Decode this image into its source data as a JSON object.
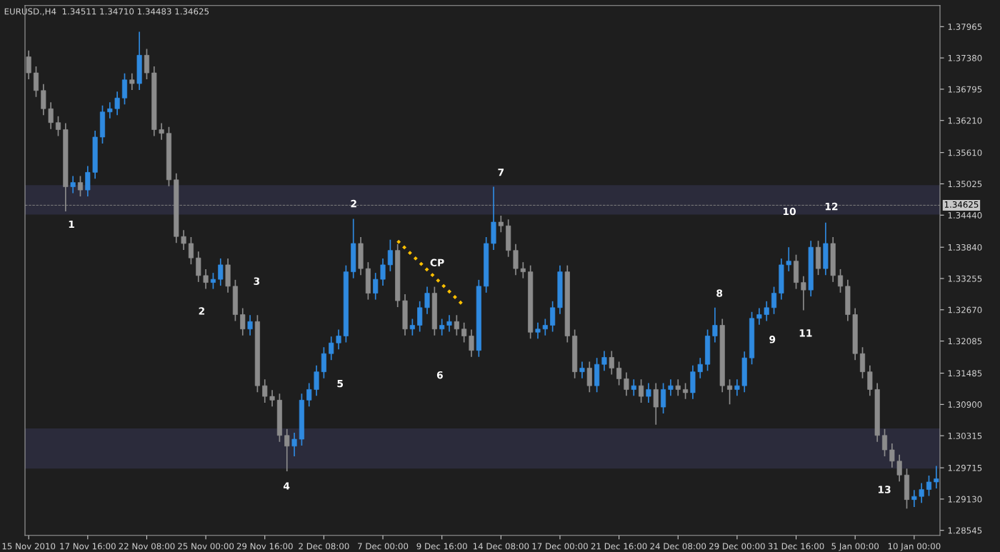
{
  "chart_data": {
    "type": "candlestick",
    "title": "EURUSD.,H4  1.34511 1.34710 1.34483 1.34625",
    "categories": [
      "15 Nov 2010",
      null,
      null,
      null,
      null,
      null,
      null,
      null,
      "17 Nov 16:00",
      null,
      null,
      null,
      null,
      null,
      null,
      null,
      "22 Nov 08:00",
      null,
      null,
      null,
      null,
      null,
      null,
      null,
      "25 Nov 00:00",
      null,
      null,
      null,
      null,
      null,
      null,
      null,
      "29 Nov 16:00",
      null,
      null,
      null,
      null,
      null,
      null,
      null,
      "2 Dec 08:00",
      null,
      null,
      null,
      null,
      null,
      null,
      null,
      "7 Dec 00:00",
      null,
      null,
      null,
      null,
      null,
      null,
      null,
      "9 Dec 16:00",
      null,
      null,
      null,
      null,
      null,
      null,
      null,
      "14 Dec 08:00",
      null,
      null,
      null,
      null,
      null,
      null,
      null,
      "17 Dec 00:00",
      null,
      null,
      null,
      null,
      null,
      null,
      null,
      "21 Dec 16:00",
      null,
      null,
      null,
      null,
      null,
      null,
      null,
      "24 Dec 08:00",
      null,
      null,
      null,
      null,
      null,
      null,
      null,
      "29 Dec 00:00",
      null,
      null,
      null,
      null,
      null,
      null,
      null,
      "31 Dec 16:00",
      null,
      null,
      null,
      null,
      null,
      null,
      null,
      "5 Jan 00:00",
      null,
      null,
      null,
      null,
      null,
      null,
      null,
      "10 Jan 00:00",
      null,
      null,
      null
    ],
    "ohlc": [
      [
        1.374,
        1.3752,
        1.3698,
        1.371
      ],
      [
        1.371,
        1.3722,
        1.3665,
        1.3677
      ],
      [
        1.3677,
        1.3689,
        1.3631,
        1.3643
      ],
      [
        1.3643,
        1.3655,
        1.3605,
        1.3617
      ],
      [
        1.3617,
        1.3629,
        1.3592,
        1.3604
      ],
      [
        1.3604,
        1.3616,
        1.3451,
        1.3497
      ],
      [
        1.3497,
        1.3517,
        1.3485,
        1.3505
      ],
      [
        1.3505,
        1.3517,
        1.3479,
        1.3491
      ],
      [
        1.3491,
        1.3536,
        1.3479,
        1.3524
      ],
      [
        1.3524,
        1.3602,
        1.3512,
        1.359
      ],
      [
        1.359,
        1.3649,
        1.3578,
        1.3637
      ],
      [
        1.3637,
        1.3655,
        1.3625,
        1.3643
      ],
      [
        1.3643,
        1.3675,
        1.3631,
        1.3663
      ],
      [
        1.3663,
        1.3709,
        1.3651,
        1.3697
      ],
      [
        1.3697,
        1.3709,
        1.3678,
        1.369
      ],
      [
        1.369,
        1.3787,
        1.3678,
        1.3743
      ],
      [
        1.3743,
        1.3755,
        1.3698,
        1.371
      ],
      [
        1.371,
        1.3722,
        1.3592,
        1.3604
      ],
      [
        1.3604,
        1.3616,
        1.3585,
        1.3597
      ],
      [
        1.3597,
        1.3609,
        1.3498,
        1.351
      ],
      [
        1.351,
        1.3522,
        1.3392,
        1.3404
      ],
      [
        1.3404,
        1.3416,
        1.3379,
        1.3391
      ],
      [
        1.3391,
        1.3403,
        1.3352,
        1.3364
      ],
      [
        1.3364,
        1.3376,
        1.3319,
        1.3331
      ],
      [
        1.3331,
        1.3343,
        1.3306,
        1.3318
      ],
      [
        1.3318,
        1.3336,
        1.3306,
        1.3324
      ],
      [
        1.3324,
        1.3363,
        1.3312,
        1.3351
      ],
      [
        1.3351,
        1.3363,
        1.3299,
        1.3311
      ],
      [
        1.3311,
        1.3323,
        1.3246,
        1.3258
      ],
      [
        1.3258,
        1.327,
        1.3219,
        1.3231
      ],
      [
        1.3231,
        1.3257,
        1.3219,
        1.3245
      ],
      [
        1.3245,
        1.3257,
        1.3113,
        1.3125
      ],
      [
        1.3125,
        1.3137,
        1.3093,
        1.3105
      ],
      [
        1.3105,
        1.3117,
        1.3086,
        1.3098
      ],
      [
        1.3098,
        1.311,
        1.302,
        1.3032
      ],
      [
        1.3032,
        1.3044,
        1.2965,
        1.3012
      ],
      [
        1.3012,
        1.3037,
        1.2993,
        1.3025
      ],
      [
        1.3025,
        1.311,
        1.3013,
        1.3098
      ],
      [
        1.3098,
        1.313,
        1.3086,
        1.3118
      ],
      [
        1.3118,
        1.3163,
        1.3106,
        1.3151
      ],
      [
        1.3151,
        1.3197,
        1.3139,
        1.3185
      ],
      [
        1.3185,
        1.3217,
        1.3173,
        1.3205
      ],
      [
        1.3205,
        1.323,
        1.3193,
        1.3218
      ],
      [
        1.3218,
        1.335,
        1.3206,
        1.3338
      ],
      [
        1.3338,
        1.3437,
        1.3326,
        1.3391
      ],
      [
        1.3391,
        1.3403,
        1.3332,
        1.3344
      ],
      [
        1.3344,
        1.3356,
        1.3286,
        1.3298
      ],
      [
        1.3298,
        1.3336,
        1.3286,
        1.3324
      ],
      [
        1.3324,
        1.3363,
        1.3312,
        1.3351
      ],
      [
        1.3351,
        1.3398,
        1.3339,
        1.3378
      ],
      [
        1.3378,
        1.339,
        1.3272,
        1.3284
      ],
      [
        1.3284,
        1.3296,
        1.3219,
        1.3231
      ],
      [
        1.3231,
        1.325,
        1.3219,
        1.3238
      ],
      [
        1.3238,
        1.3283,
        1.3226,
        1.3271
      ],
      [
        1.3271,
        1.331,
        1.3259,
        1.3298
      ],
      [
        1.3298,
        1.331,
        1.3219,
        1.3231
      ],
      [
        1.3231,
        1.325,
        1.3219,
        1.3238
      ],
      [
        1.3238,
        1.3257,
        1.3226,
        1.3245
      ],
      [
        1.3245,
        1.3257,
        1.3219,
        1.3231
      ],
      [
        1.3231,
        1.3243,
        1.3206,
        1.3218
      ],
      [
        1.3218,
        1.323,
        1.3179,
        1.3191
      ],
      [
        1.3191,
        1.3323,
        1.3179,
        1.3311
      ],
      [
        1.3311,
        1.3403,
        1.3299,
        1.3391
      ],
      [
        1.3391,
        1.3497,
        1.3379,
        1.3431
      ],
      [
        1.3431,
        1.3443,
        1.3412,
        1.3424
      ],
      [
        1.3424,
        1.3436,
        1.3366,
        1.3378
      ],
      [
        1.3378,
        1.339,
        1.3332,
        1.3344
      ],
      [
        1.3344,
        1.3356,
        1.3326,
        1.3338
      ],
      [
        1.3338,
        1.335,
        1.3213,
        1.3225
      ],
      [
        1.3225,
        1.3243,
        1.3213,
        1.3231
      ],
      [
        1.3231,
        1.325,
        1.3219,
        1.3238
      ],
      [
        1.3238,
        1.3283,
        1.3226,
        1.3271
      ],
      [
        1.3271,
        1.335,
        1.3259,
        1.3338
      ],
      [
        1.3338,
        1.335,
        1.3206,
        1.3218
      ],
      [
        1.3218,
        1.323,
        1.3139,
        1.3151
      ],
      [
        1.3151,
        1.317,
        1.3139,
        1.3158
      ],
      [
        1.3158,
        1.317,
        1.3113,
        1.3125
      ],
      [
        1.3125,
        1.3177,
        1.3113,
        1.3165
      ],
      [
        1.3165,
        1.319,
        1.3153,
        1.3178
      ],
      [
        1.3178,
        1.319,
        1.3146,
        1.3158
      ],
      [
        1.3158,
        1.317,
        1.3126,
        1.3138
      ],
      [
        1.3138,
        1.315,
        1.3106,
        1.3118
      ],
      [
        1.3118,
        1.3137,
        1.3106,
        1.3125
      ],
      [
        1.3125,
        1.3137,
        1.3093,
        1.3105
      ],
      [
        1.3105,
        1.313,
        1.3093,
        1.3118
      ],
      [
        1.3118,
        1.313,
        1.3052,
        1.3085
      ],
      [
        1.3085,
        1.313,
        1.3073,
        1.3118
      ],
      [
        1.3118,
        1.3137,
        1.3106,
        1.3125
      ],
      [
        1.3125,
        1.3137,
        1.3106,
        1.3118
      ],
      [
        1.3118,
        1.313,
        1.31,
        1.3112
      ],
      [
        1.3112,
        1.3163,
        1.31,
        1.3151
      ],
      [
        1.3151,
        1.3177,
        1.3139,
        1.3165
      ],
      [
        1.3165,
        1.323,
        1.3153,
        1.3218
      ],
      [
        1.3218,
        1.3271,
        1.3206,
        1.3238
      ],
      [
        1.3238,
        1.325,
        1.3113,
        1.3125
      ],
      [
        1.3125,
        1.3137,
        1.309,
        1.3118
      ],
      [
        1.3118,
        1.3137,
        1.3106,
        1.3125
      ],
      [
        1.3125,
        1.3189,
        1.3113,
        1.3177
      ],
      [
        1.3177,
        1.3263,
        1.3165,
        1.3251
      ],
      [
        1.3251,
        1.327,
        1.3239,
        1.3258
      ],
      [
        1.3258,
        1.3283,
        1.3246,
        1.3271
      ],
      [
        1.3271,
        1.331,
        1.3259,
        1.3298
      ],
      [
        1.3298,
        1.3363,
        1.3286,
        1.3351
      ],
      [
        1.3351,
        1.3384,
        1.3339,
        1.3358
      ],
      [
        1.3358,
        1.337,
        1.3306,
        1.3318
      ],
      [
        1.3318,
        1.333,
        1.3266,
        1.3304
      ],
      [
        1.3304,
        1.3396,
        1.3292,
        1.3384
      ],
      [
        1.3384,
        1.3396,
        1.3332,
        1.3344
      ],
      [
        1.3344,
        1.343,
        1.3332,
        1.3391
      ],
      [
        1.3391,
        1.3403,
        1.3319,
        1.3331
      ],
      [
        1.3331,
        1.3343,
        1.3299,
        1.3311
      ],
      [
        1.3311,
        1.3323,
        1.3246,
        1.3258
      ],
      [
        1.3258,
        1.327,
        1.3173,
        1.3185
      ],
      [
        1.3185,
        1.3197,
        1.3139,
        1.3151
      ],
      [
        1.3151,
        1.3163,
        1.3106,
        1.3118
      ],
      [
        1.3118,
        1.313,
        1.302,
        1.3032
      ],
      [
        1.3032,
        1.3044,
        1.2993,
        1.3005
      ],
      [
        1.3005,
        1.3017,
        1.2972,
        1.2984
      ],
      [
        1.2984,
        1.2996,
        1.2946,
        1.2958
      ],
      [
        1.2958,
        1.297,
        1.2895,
        1.2912
      ],
      [
        1.2912,
        1.293,
        1.2898,
        1.2918
      ],
      [
        1.2918,
        1.2943,
        1.2906,
        1.2931
      ],
      [
        1.2931,
        1.2957,
        1.2919,
        1.2945
      ],
      [
        1.2945,
        1.2975,
        1.2933,
        1.2951
      ]
    ],
    "colors": [
      "#8c8c8c",
      "#8c8c8c",
      "#8c8c8c",
      "#8c8c8c",
      "#8c8c8c",
      "#8c8c8c",
      "#2f8ae0",
      "#8c8c8c",
      "#2f8ae0",
      "#2f8ae0",
      "#2f8ae0",
      "#2f8ae0",
      "#2f8ae0",
      "#2f8ae0",
      "#8c8c8c",
      "#2f8ae0",
      "#8c8c8c",
      "#8c8c8c",
      "#8c8c8c",
      "#8c8c8c",
      "#8c8c8c",
      "#8c8c8c",
      "#8c8c8c",
      "#8c8c8c",
      "#8c8c8c",
      "#2f8ae0",
      "#2f8ae0",
      "#8c8c8c",
      "#8c8c8c",
      "#8c8c8c",
      "#2f8ae0",
      "#8c8c8c",
      "#8c8c8c",
      "#8c8c8c",
      "#8c8c8c",
      "#8c8c8c",
      "#2f8ae0",
      "#2f8ae0",
      "#2f8ae0",
      "#2f8ae0",
      "#2f8ae0",
      "#2f8ae0",
      "#2f8ae0",
      "#2f8ae0",
      "#2f8ae0",
      "#8c8c8c",
      "#8c8c8c",
      "#2f8ae0",
      "#2f8ae0",
      "#2f8ae0",
      "#8c8c8c",
      "#8c8c8c",
      "#2f8ae0",
      "#2f8ae0",
      "#2f8ae0",
      "#8c8c8c",
      "#2f8ae0",
      "#2f8ae0",
      "#8c8c8c",
      "#8c8c8c",
      "#8c8c8c",
      "#2f8ae0",
      "#2f8ae0",
      "#2f8ae0",
      "#8c8c8c",
      "#8c8c8c",
      "#8c8c8c",
      "#8c8c8c",
      "#8c8c8c",
      "#2f8ae0",
      "#2f8ae0",
      "#2f8ae0",
      "#2f8ae0",
      "#8c8c8c",
      "#8c8c8c",
      "#2f8ae0",
      "#8c8c8c",
      "#2f8ae0",
      "#2f8ae0",
      "#8c8c8c",
      "#8c8c8c",
      "#8c8c8c",
      "#2f8ae0",
      "#8c8c8c",
      "#2f8ae0",
      "#8c8c8c",
      "#2f8ae0",
      "#2f8ae0",
      "#8c8c8c",
      "#8c8c8c",
      "#2f8ae0",
      "#2f8ae0",
      "#2f8ae0",
      "#2f8ae0",
      "#8c8c8c",
      "#8c8c8c",
      "#2f8ae0",
      "#2f8ae0",
      "#2f8ae0",
      "#2f8ae0",
      "#2f8ae0",
      "#2f8ae0",
      "#2f8ae0",
      "#2f8ae0",
      "#8c8c8c",
      "#8c8c8c",
      "#2f8ae0",
      "#8c8c8c",
      "#2f8ae0",
      "#8c8c8c",
      "#8c8c8c",
      "#8c8c8c",
      "#8c8c8c",
      "#8c8c8c",
      "#8c8c8c",
      "#8c8c8c",
      "#8c8c8c",
      "#8c8c8c",
      "#8c8c8c",
      "#8c8c8c",
      "#2f8ae0",
      "#2f8ae0",
      "#2f8ae0",
      "#2f8ae0"
    ],
    "ylim": [
      1.2845,
      1.3836
    ],
    "yticks": [
      1.37965,
      {
        "value": 1.3738,
        "label": "1.37380"
      },
      1.36795,
      {
        "value": 1.3621,
        "label": "1.36210"
      },
      {
        "value": 1.3561,
        "label": "1.35610"
      },
      1.35025,
      {
        "value": 1.3444,
        "label": "1.34440"
      },
      {
        "value": 1.3384,
        "label": "1.33840"
      },
      1.33255,
      {
        "value": 1.3267,
        "label": "1.32670"
      },
      1.32085,
      1.31485,
      {
        "value": 1.309,
        "label": "1.30900"
      },
      1.30315,
      1.29715,
      {
        "value": 1.2913,
        "label": "1.29130"
      },
      1.28545
    ],
    "series": [
      {
        "type": "line",
        "color": "#ffc000",
        "line_style": "dotted",
        "values": [
          null,
          null,
          null,
          null,
          null,
          null,
          null,
          null,
          null,
          null,
          null,
          null,
          null,
          null,
          null,
          null,
          null,
          null,
          null,
          null,
          null,
          null,
          null,
          null,
          null,
          null,
          null,
          null,
          null,
          null,
          null,
          null,
          null,
          null,
          null,
          null,
          null,
          null,
          null,
          null,
          null,
          null,
          null,
          null,
          null,
          null,
          null,
          null,
          null,
          null,
          1.3396,
          null,
          null,
          null,
          null,
          null,
          null,
          null,
          null,
          1.3274,
          null,
          null,
          null,
          null,
          null,
          null,
          null,
          null,
          null,
          null,
          null,
          null,
          null,
          null,
          null,
          null,
          null,
          null,
          null,
          null,
          null,
          null,
          null,
          null,
          null,
          null,
          null,
          null,
          null,
          null,
          null,
          null,
          null,
          null,
          null,
          null,
          null,
          null,
          null,
          null,
          null,
          null,
          null,
          null,
          null,
          null,
          null,
          null,
          null,
          null,
          null,
          null,
          null,
          null,
          null,
          null,
          null,
          null,
          null,
          null,
          null,
          null,
          null,
          null
        ]
      }
    ],
    "grid": false,
    "ref_lines": [
      {
        "axis": "y",
        "value": 1.34625,
        "label": "1.34625",
        "color": "#808080",
        "line_style": "dashed"
      }
    ],
    "bands": [
      {
        "axis": "y",
        "from": 1.3445,
        "to": 1.35,
        "color": "#2b2b3b"
      },
      {
        "axis": "y",
        "from": 1.297,
        "to": 1.3045,
        "color": "#2b2b3b"
      }
    ],
    "annotations": [
      "1",
      "2",
      "3",
      "2",
      "4",
      "5",
      "CP",
      "6",
      "7",
      "8",
      "9",
      "10",
      "11",
      "12",
      "13"
    ]
  }
}
